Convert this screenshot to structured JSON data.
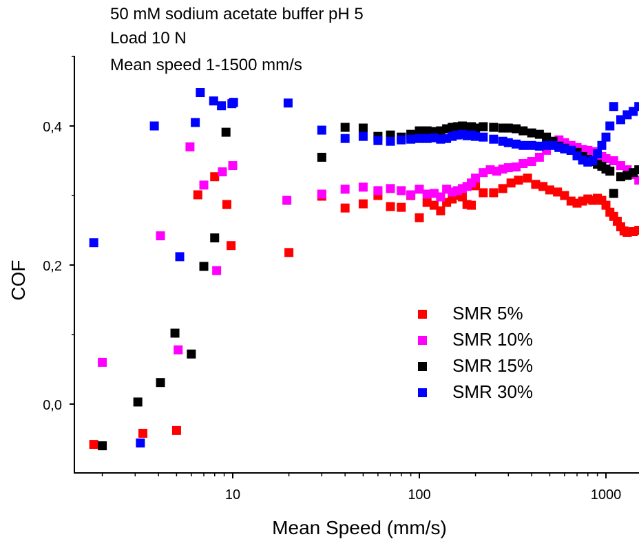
{
  "chart_data": {
    "type": "scatter",
    "annotations": [
      "50 mM sodium acetate buffer pH 5",
      "Load 10 N",
      "Mean speed 1-1500 mm/s"
    ],
    "xlabel": "Mean Speed (mm/s)",
    "ylabel": "COF",
    "xscale": "log",
    "xlim": [
      1.7,
      1500
    ],
    "ylim": [
      -0.1,
      0.5
    ],
    "xticks": [
      10,
      100,
      1000
    ],
    "xtick_labels": [
      "10",
      "100",
      "1000"
    ],
    "yticks": [
      0.0,
      0.2,
      0.4
    ],
    "ytick_labels": [
      "0,0",
      "0,2",
      "0,4"
    ],
    "grid": false,
    "legend_position": "center-right",
    "series": [
      {
        "name": "SMR 5%",
        "color": "#ff0000",
        "points": [
          [
            1.8,
            -0.058
          ],
          [
            3.3,
            -0.042
          ],
          [
            5.0,
            -0.038
          ],
          [
            6.5,
            0.301
          ],
          [
            8.0,
            0.327
          ],
          [
            9.3,
            0.287
          ],
          [
            9.8,
            0.228
          ],
          [
            20,
            0.218
          ],
          [
            30,
            0.299
          ],
          [
            40,
            0.282
          ],
          [
            50,
            0.288
          ],
          [
            60,
            0.3
          ],
          [
            70,
            0.284
          ],
          [
            80,
            0.283
          ],
          [
            90,
            0.3
          ],
          [
            100,
            0.268
          ],
          [
            110,
            0.29
          ],
          [
            120,
            0.286
          ],
          [
            130,
            0.278
          ],
          [
            140,
            0.29
          ],
          [
            150,
            0.295
          ],
          [
            160,
            0.3
          ],
          [
            170,
            0.298
          ],
          [
            180,
            0.287
          ],
          [
            190,
            0.286
          ],
          [
            200,
            0.314
          ],
          [
            220,
            0.304
          ],
          [
            250,
            0.304
          ],
          [
            280,
            0.31
          ],
          [
            310,
            0.318
          ],
          [
            340,
            0.322
          ],
          [
            380,
            0.325
          ],
          [
            420,
            0.316
          ],
          [
            460,
            0.313
          ],
          [
            500,
            0.308
          ],
          [
            550,
            0.305
          ],
          [
            600,
            0.3
          ],
          [
            650,
            0.292
          ],
          [
            700,
            0.289
          ],
          [
            750,
            0.292
          ],
          [
            800,
            0.295
          ],
          [
            850,
            0.293
          ],
          [
            900,
            0.296
          ],
          [
            950,
            0.293
          ],
          [
            1000,
            0.286
          ],
          [
            1050,
            0.276
          ],
          [
            1100,
            0.27
          ],
          [
            1150,
            0.263
          ],
          [
            1200,
            0.255
          ],
          [
            1250,
            0.249
          ],
          [
            1300,
            0.247
          ],
          [
            1400,
            0.248
          ],
          [
            1500,
            0.25
          ]
        ]
      },
      {
        "name": "SMR 10%",
        "color": "#ff00ff",
        "points": [
          [
            2.0,
            0.06
          ],
          [
            4.1,
            0.242
          ],
          [
            5.1,
            0.078
          ],
          [
            5.9,
            0.37
          ],
          [
            7.0,
            0.315
          ],
          [
            8.2,
            0.192
          ],
          [
            8.8,
            0.334
          ],
          [
            10.0,
            0.343
          ],
          [
            19.5,
            0.293
          ],
          [
            30,
            0.302
          ],
          [
            40,
            0.309
          ],
          [
            50,
            0.312
          ],
          [
            60,
            0.307
          ],
          [
            70,
            0.31
          ],
          [
            80,
            0.307
          ],
          [
            90,
            0.301
          ],
          [
            100,
            0.309
          ],
          [
            110,
            0.302
          ],
          [
            120,
            0.303
          ],
          [
            130,
            0.298
          ],
          [
            140,
            0.309
          ],
          [
            150,
            0.305
          ],
          [
            160,
            0.307
          ],
          [
            170,
            0.31
          ],
          [
            180,
            0.313
          ],
          [
            190,
            0.318
          ],
          [
            200,
            0.325
          ],
          [
            220,
            0.333
          ],
          [
            240,
            0.337
          ],
          [
            260,
            0.335
          ],
          [
            280,
            0.338
          ],
          [
            300,
            0.34
          ],
          [
            330,
            0.341
          ],
          [
            360,
            0.346
          ],
          [
            400,
            0.349
          ],
          [
            440,
            0.355
          ],
          [
            480,
            0.365
          ],
          [
            520,
            0.375
          ],
          [
            560,
            0.38
          ],
          [
            600,
            0.376
          ],
          [
            650,
            0.372
          ],
          [
            700,
            0.369
          ],
          [
            750,
            0.366
          ],
          [
            800,
            0.365
          ],
          [
            850,
            0.363
          ],
          [
            900,
            0.358
          ],
          [
            950,
            0.356
          ],
          [
            1000,
            0.353
          ],
          [
            1100,
            0.35
          ],
          [
            1200,
            0.343
          ],
          [
            1300,
            0.337
          ],
          [
            1400,
            0.33
          ],
          [
            1500,
            0.322
          ]
        ]
      },
      {
        "name": "SMR 15%",
        "color": "#000000",
        "points": [
          [
            2.0,
            -0.06
          ],
          [
            3.1,
            0.003
          ],
          [
            4.1,
            0.031
          ],
          [
            4.9,
            0.102
          ],
          [
            6.0,
            0.072
          ],
          [
            7.0,
            0.198
          ],
          [
            8.0,
            0.239
          ],
          [
            9.2,
            0.391
          ],
          [
            30,
            0.355
          ],
          [
            40,
            0.398
          ],
          [
            50,
            0.397
          ],
          [
            60,
            0.385
          ],
          [
            70,
            0.387
          ],
          [
            80,
            0.384
          ],
          [
            90,
            0.388
          ],
          [
            100,
            0.393
          ],
          [
            110,
            0.393
          ],
          [
            120,
            0.392
          ],
          [
            130,
            0.393
          ],
          [
            140,
            0.396
          ],
          [
            150,
            0.398
          ],
          [
            160,
            0.399
          ],
          [
            170,
            0.4
          ],
          [
            180,
            0.398
          ],
          [
            190,
            0.399
          ],
          [
            200,
            0.397
          ],
          [
            220,
            0.399
          ],
          [
            250,
            0.398
          ],
          [
            280,
            0.397
          ],
          [
            300,
            0.397
          ],
          [
            330,
            0.396
          ],
          [
            360,
            0.393
          ],
          [
            400,
            0.39
          ],
          [
            440,
            0.388
          ],
          [
            480,
            0.384
          ],
          [
            520,
            0.378
          ],
          [
            560,
            0.371
          ],
          [
            600,
            0.368
          ],
          [
            650,
            0.365
          ],
          [
            700,
            0.362
          ],
          [
            750,
            0.356
          ],
          [
            800,
            0.352
          ],
          [
            850,
            0.349
          ],
          [
            900,
            0.345
          ],
          [
            950,
            0.342
          ],
          [
            1000,
            0.338
          ],
          [
            1050,
            0.335
          ],
          [
            1100,
            0.303
          ],
          [
            1200,
            0.327
          ],
          [
            1300,
            0.329
          ],
          [
            1400,
            0.333
          ],
          [
            1500,
            0.337
          ]
        ]
      },
      {
        "name": "SMR 30%",
        "color": "#0000ff",
        "points": [
          [
            1.8,
            0.232
          ],
          [
            3.2,
            -0.056
          ],
          [
            3.8,
            0.4
          ],
          [
            5.2,
            0.212
          ],
          [
            6.3,
            0.405
          ],
          [
            6.7,
            0.448
          ],
          [
            7.9,
            0.436
          ],
          [
            8.7,
            0.429
          ],
          [
            9.9,
            0.432
          ],
          [
            10.1,
            0.434
          ],
          [
            19.8,
            0.433
          ],
          [
            30,
            0.394
          ],
          [
            40,
            0.382
          ],
          [
            50,
            0.385
          ],
          [
            60,
            0.379
          ],
          [
            70,
            0.378
          ],
          [
            80,
            0.38
          ],
          [
            90,
            0.381
          ],
          [
            100,
            0.382
          ],
          [
            110,
            0.382
          ],
          [
            120,
            0.383
          ],
          [
            130,
            0.381
          ],
          [
            140,
            0.382
          ],
          [
            150,
            0.385
          ],
          [
            160,
            0.387
          ],
          [
            170,
            0.388
          ],
          [
            180,
            0.386
          ],
          [
            190,
            0.387
          ],
          [
            200,
            0.385
          ],
          [
            220,
            0.384
          ],
          [
            250,
            0.381
          ],
          [
            280,
            0.378
          ],
          [
            300,
            0.376
          ],
          [
            330,
            0.374
          ],
          [
            360,
            0.372
          ],
          [
            400,
            0.372
          ],
          [
            440,
            0.371
          ],
          [
            480,
            0.372
          ],
          [
            520,
            0.372
          ],
          [
            560,
            0.369
          ],
          [
            600,
            0.367
          ],
          [
            650,
            0.365
          ],
          [
            700,
            0.357
          ],
          [
            750,
            0.351
          ],
          [
            800,
            0.348
          ],
          [
            850,
            0.35
          ],
          [
            900,
            0.36
          ],
          [
            950,
            0.372
          ],
          [
            1000,
            0.384
          ],
          [
            1050,
            0.4
          ],
          [
            1100,
            0.428
          ],
          [
            1200,
            0.409
          ],
          [
            1300,
            0.416
          ],
          [
            1400,
            0.421
          ],
          [
            1500,
            0.428
          ]
        ]
      }
    ]
  }
}
